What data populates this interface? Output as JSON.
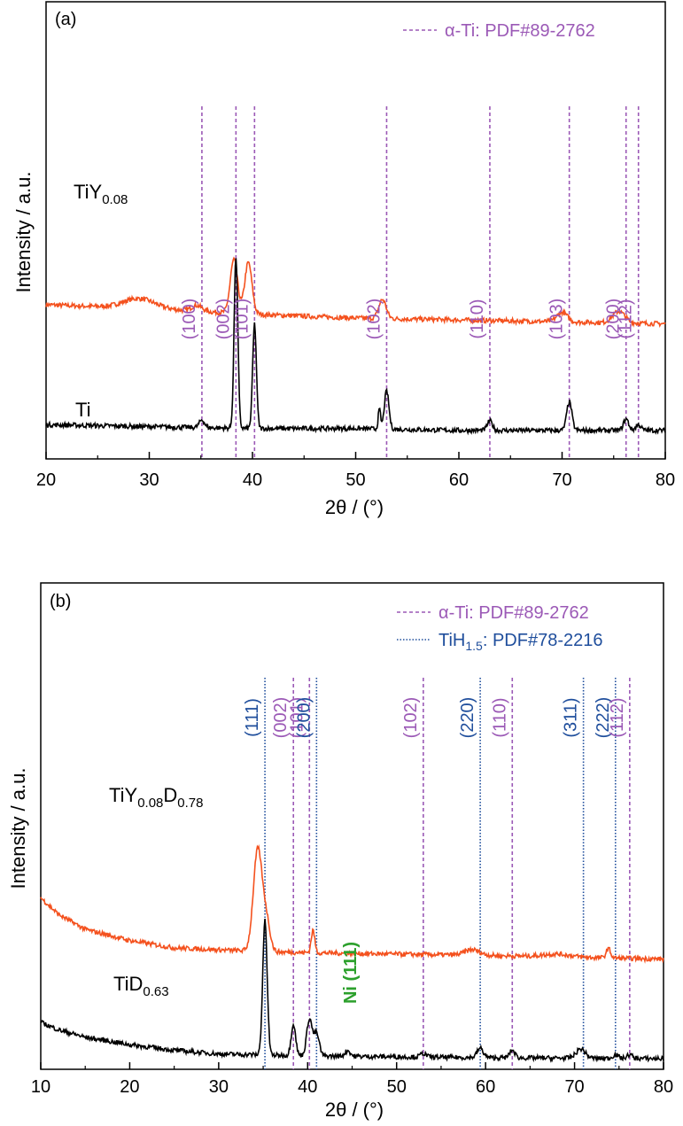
{
  "colors": {
    "alpha_ti": "#9b59b6",
    "tih": "#1f4e9c",
    "ni": "#2ca02c",
    "orange": "#f4511e",
    "black": "#000000"
  },
  "chart_data": [
    {
      "type": "line",
      "panel_label": "(a)",
      "xlabel": "2θ / (°)",
      "ylabel": "Intensity / a.u.",
      "xlim": [
        20,
        80
      ],
      "xticks": [
        "20",
        "30",
        "40",
        "50",
        "60",
        "70",
        "80"
      ],
      "legend": [
        {
          "label": "α-Ti: PDF#89-2762",
          "style": "dashed",
          "color": "#9b59b6"
        }
      ],
      "reference_lines": [
        {
          "x": 35.1,
          "label": "(100)",
          "set": "alpha"
        },
        {
          "x": 38.4,
          "label": "(002)",
          "set": "alpha"
        },
        {
          "x": 40.2,
          "label": "(101)",
          "set": "alpha"
        },
        {
          "x": 53.0,
          "label": "(102)",
          "set": "alpha"
        },
        {
          "x": 63.0,
          "label": "(110)",
          "set": "alpha"
        },
        {
          "x": 70.7,
          "label": "(103)",
          "set": "alpha"
        },
        {
          "x": 76.2,
          "label": "(200)",
          "set": "alpha"
        },
        {
          "x": 77.4,
          "label": "(112)",
          "set": "alpha"
        }
      ],
      "series": [
        {
          "name": "TiY0.08",
          "label_main": "TiY",
          "label_sub": "0.08",
          "color": "#f4511e",
          "offset": 0.55,
          "background": [
            [
              20,
              0.12
            ],
            [
              30,
              0.1
            ],
            [
              40,
              0.07
            ],
            [
              50,
              0.05
            ],
            [
              60,
              0.04
            ],
            [
              70,
              0.03
            ],
            [
              80,
              0.02
            ]
          ],
          "peaks": [
            [
              29,
              0.05,
              1.5
            ],
            [
              34.6,
              0.03,
              0.5
            ],
            [
              38.2,
              0.28,
              0.35
            ],
            [
              39.6,
              0.27,
              0.35
            ],
            [
              52.6,
              0.1,
              0.35
            ],
            [
              70.0,
              0.05,
              0.5
            ],
            [
              75.5,
              0.06,
              0.6
            ]
          ]
        },
        {
          "name": "Ti",
          "label_main": "Ti",
          "label_sub": "",
          "color": "#000000",
          "offset": 0.0,
          "background": [
            [
              20,
              0.04
            ],
            [
              30,
              0.03
            ],
            [
              40,
              0.02
            ],
            [
              50,
              0.02
            ],
            [
              60,
              0.01
            ],
            [
              80,
              0.01
            ]
          ],
          "peaks": [
            [
              35.1,
              0.04,
              0.25
            ],
            [
              38.4,
              0.9,
              0.18
            ],
            [
              40.2,
              0.55,
              0.18
            ],
            [
              52.3,
              0.1,
              0.12
            ],
            [
              53.0,
              0.2,
              0.22
            ],
            [
              63.0,
              0.05,
              0.25
            ],
            [
              70.7,
              0.15,
              0.25
            ],
            [
              76.2,
              0.06,
              0.25
            ],
            [
              77.4,
              0.03,
              0.25
            ]
          ]
        }
      ]
    },
    {
      "type": "line",
      "panel_label": "(b)",
      "xlabel": "2θ / (°)",
      "ylabel": "Intensity / a.u.",
      "xlim": [
        10,
        80
      ],
      "xticks": [
        "10",
        "20",
        "30",
        "40",
        "50",
        "60",
        "70",
        "80"
      ],
      "legend": [
        {
          "label": "α-Ti: PDF#89-2762",
          "style": "dashed",
          "color": "#9b59b6"
        },
        {
          "label": "TiH1.5: PDF#78-2216",
          "label_main": "TiH",
          "label_sub": "1.5",
          "label_rest": ": PDF#78-2216",
          "style": "dotted",
          "color": "#1f4e9c"
        }
      ],
      "annotations": [
        {
          "text": "Ni (111)",
          "x": 44.5,
          "color": "#2ca02c"
        }
      ],
      "reference_lines": [
        {
          "x": 35.2,
          "label": "(111)",
          "set": "tih"
        },
        {
          "x": 38.4,
          "label": "(002)",
          "set": "alpha"
        },
        {
          "x": 40.2,
          "label": "(101)",
          "set": "alpha"
        },
        {
          "x": 41.0,
          "label": "(200)",
          "set": "tih"
        },
        {
          "x": 53.0,
          "label": "(102)",
          "set": "alpha"
        },
        {
          "x": 59.4,
          "label": "(220)",
          "set": "tih"
        },
        {
          "x": 63.0,
          "label": "(110)",
          "set": "alpha"
        },
        {
          "x": 71.0,
          "label": "(311)",
          "set": "tih"
        },
        {
          "x": 74.6,
          "label": "(222)",
          "set": "tih"
        },
        {
          "x": 76.2,
          "label": "(112)",
          "set": "alpha"
        }
      ],
      "series": [
        {
          "name": "TiY0.08D0.78",
          "label_main": "TiY",
          "label_sub": "0.08",
          "label_main2": "D",
          "label_sub2": "0.78",
          "color": "#f4511e",
          "offset": 0.52,
          "background": [
            [
              10,
              0.35
            ],
            [
              12,
              0.26
            ],
            [
              15,
              0.18
            ],
            [
              20,
              0.12
            ],
            [
              25,
              0.08
            ],
            [
              30,
              0.07
            ],
            [
              35,
              0.06
            ],
            [
              45,
              0.05
            ],
            [
              60,
              0.04
            ],
            [
              80,
              0.02
            ]
          ],
          "peaks": [
            [
              34.4,
              0.55,
              0.5
            ],
            [
              35.4,
              0.15,
              0.4
            ],
            [
              40.6,
              0.12,
              0.2
            ],
            [
              58.5,
              0.03,
              0.8
            ],
            [
              68,
              0.015,
              1.5
            ],
            [
              73.8,
              0.05,
              0.25
            ]
          ]
        },
        {
          "name": "TiD0.63",
          "label_main": "TiD",
          "label_sub": "0.63",
          "color": "#000000",
          "offset": 0.0,
          "background": [
            [
              10,
              0.2
            ],
            [
              12,
              0.16
            ],
            [
              15,
              0.12
            ],
            [
              20,
              0.08
            ],
            [
              25,
              0.05
            ],
            [
              30,
              0.03
            ],
            [
              40,
              0.02
            ],
            [
              60,
              0.01
            ],
            [
              80,
              0.005
            ]
          ],
          "peaks": [
            [
              35.2,
              0.72,
              0.25
            ],
            [
              38.4,
              0.17,
              0.25
            ],
            [
              40.2,
              0.2,
              0.3
            ],
            [
              41.0,
              0.12,
              0.3
            ],
            [
              44.5,
              0.03,
              0.3
            ],
            [
              53.0,
              0.02,
              0.3
            ],
            [
              59.4,
              0.05,
              0.35
            ],
            [
              63.0,
              0.04,
              0.3
            ],
            [
              70.7,
              0.05,
              0.5
            ],
            [
              74.6,
              0.02,
              0.3
            ],
            [
              76.2,
              0.02,
              0.3
            ]
          ]
        }
      ]
    }
  ]
}
